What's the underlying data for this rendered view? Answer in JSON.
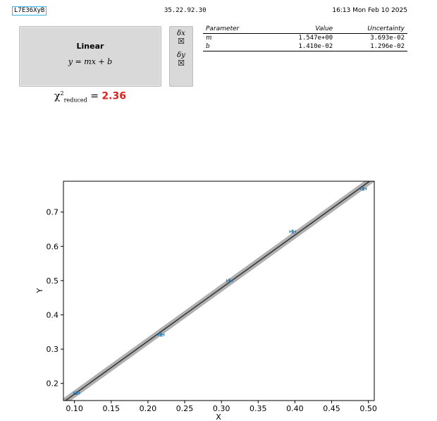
{
  "header": {
    "run_id": "L7E36XyB",
    "ip": "35.22.92.30",
    "timestamp": "16:13 Mon Feb 10 2025"
  },
  "model": {
    "name": "Linear",
    "equation": "y = mx + b",
    "dx_label": "δx",
    "dy_label": "δy",
    "dx_checked": "☒",
    "dy_checked": "☒"
  },
  "fit": {
    "chi_symbol": "χ",
    "chi_sub": "reduced",
    "chi_sup": "2",
    "chi_value": "2.36",
    "headers": [
      "Parameter",
      "Value",
      "Uncertainty"
    ],
    "rows": [
      {
        "param": "m",
        "value": "1.547e+00",
        "uncertainty": "3.693e-02"
      },
      {
        "param": "b",
        "value": "1.410e-02",
        "uncertainty": "1.296e-02"
      }
    ]
  },
  "colors": {
    "marker": "#1f77b4",
    "fit_line": "#333333",
    "band": "#b0b0b0",
    "chi_value": "#e02020"
  },
  "chart_data": {
    "type": "scatter",
    "xlabel": "X",
    "ylabel": "Y",
    "xlim": [
      0.085,
      0.508
    ],
    "ylim": [
      0.15,
      0.79
    ],
    "x_ticks": [
      0.1,
      0.15,
      0.2,
      0.25,
      0.3,
      0.35,
      0.4,
      0.45,
      0.5
    ],
    "x_tick_labels": [
      "0.10",
      "0.15",
      "0.20",
      "0.25",
      "0.30",
      "0.35",
      "0.40",
      "0.45",
      "0.50"
    ],
    "y_ticks": [
      0.2,
      0.3,
      0.4,
      0.5,
      0.6,
      0.7
    ],
    "y_tick_labels": [
      "0.2",
      "0.3",
      "0.4",
      "0.5",
      "0.6",
      "0.7"
    ],
    "grid": false,
    "points": [
      {
        "x": 0.103,
        "y": 0.172,
        "xerr": 0.004,
        "yerr": 0.003
      },
      {
        "x": 0.218,
        "y": 0.342,
        "xerr": 0.004,
        "yerr": 0.003
      },
      {
        "x": 0.311,
        "y": 0.5,
        "xerr": 0.004,
        "yerr": 0.003
      },
      {
        "x": 0.397,
        "y": 0.643,
        "xerr": 0.004,
        "yerr": 0.003
      },
      {
        "x": 0.493,
        "y": 0.768,
        "xerr": 0.004,
        "yerr": 0.003
      }
    ],
    "fit": {
      "m": 1.547,
      "b": 0.0141
    }
  }
}
